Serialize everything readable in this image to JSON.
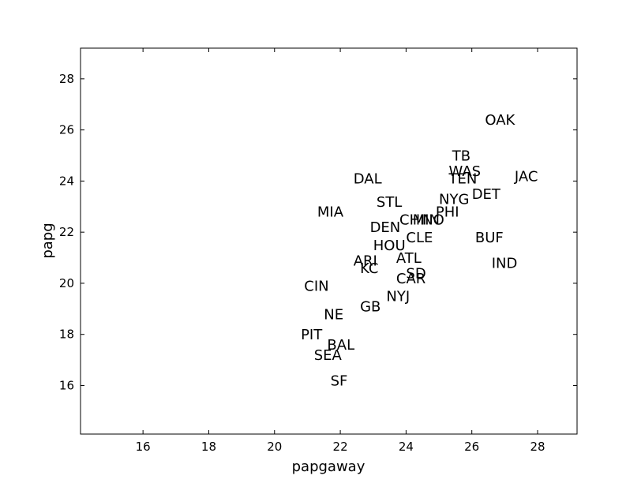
{
  "chart_data": {
    "type": "scatter",
    "title": "",
    "xlabel": "papgaway",
    "ylabel": "papg",
    "xlim": [
      14.1,
      29.2
    ],
    "ylim": [
      14.1,
      29.2
    ],
    "xticks": [
      16,
      18,
      20,
      22,
      24,
      26,
      28
    ],
    "yticks": [
      16,
      18,
      20,
      22,
      24,
      26,
      28
    ],
    "grid": false,
    "marker": "team abbreviation text",
    "points": [
      {
        "label": "OAK",
        "x": 26.4,
        "y": 26.2
      },
      {
        "label": "TB",
        "x": 25.4,
        "y": 24.8
      },
      {
        "label": "WAS",
        "x": 25.3,
        "y": 24.2
      },
      {
        "label": "TEN",
        "x": 25.3,
        "y": 23.9
      },
      {
        "label": "JAC",
        "x": 27.3,
        "y": 24.0
      },
      {
        "label": "DAL",
        "x": 22.4,
        "y": 23.9
      },
      {
        "label": "NYG",
        "x": 25.0,
        "y": 23.1
      },
      {
        "label": "DET",
        "x": 26.0,
        "y": 23.3
      },
      {
        "label": "STL",
        "x": 23.1,
        "y": 23.0
      },
      {
        "label": "MIA",
        "x": 21.3,
        "y": 22.6
      },
      {
        "label": "PHI",
        "x": 24.9,
        "y": 22.6
      },
      {
        "label": "CHI",
        "x": 23.8,
        "y": 22.3
      },
      {
        "label": "MIN",
        "x": 24.2,
        "y": 22.3
      },
      {
        "label": "NO",
        "x": 24.5,
        "y": 22.3
      },
      {
        "label": "DEN",
        "x": 22.9,
        "y": 22.0
      },
      {
        "label": "CLE",
        "x": 24.0,
        "y": 21.6
      },
      {
        "label": "BUF",
        "x": 26.1,
        "y": 21.6
      },
      {
        "label": "HOU",
        "x": 23.0,
        "y": 21.3
      },
      {
        "label": "ATL",
        "x": 23.7,
        "y": 20.8
      },
      {
        "label": "ARI",
        "x": 22.4,
        "y": 20.7
      },
      {
        "label": "KC",
        "x": 22.6,
        "y": 20.4
      },
      {
        "label": "IND",
        "x": 26.6,
        "y": 20.6
      },
      {
        "label": "SD",
        "x": 24.0,
        "y": 20.2
      },
      {
        "label": "CAR",
        "x": 23.7,
        "y": 20.0
      },
      {
        "label": "CIN",
        "x": 20.9,
        "y": 19.7
      },
      {
        "label": "NYJ",
        "x": 23.4,
        "y": 19.3
      },
      {
        "label": "GB",
        "x": 22.6,
        "y": 18.9
      },
      {
        "label": "NE",
        "x": 21.5,
        "y": 18.6
      },
      {
        "label": "PIT",
        "x": 20.8,
        "y": 17.8
      },
      {
        "label": "BAL",
        "x": 21.6,
        "y": 17.4
      },
      {
        "label": "SEA",
        "x": 21.2,
        "y": 17.0
      },
      {
        "label": "SF",
        "x": 21.7,
        "y": 16.0
      }
    ]
  }
}
